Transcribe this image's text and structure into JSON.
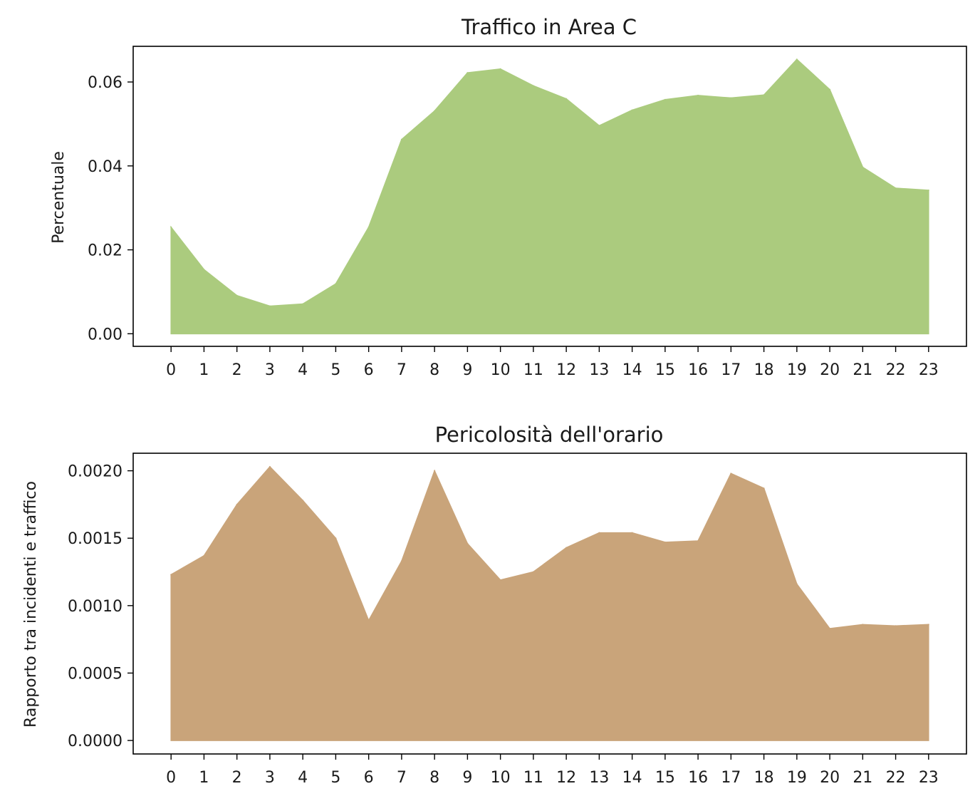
{
  "chart_data": [
    {
      "type": "area",
      "title": "Traffico in Area C",
      "xlabel": "",
      "ylabel": "Percentuale",
      "x": [
        0,
        1,
        2,
        3,
        4,
        5,
        6,
        7,
        8,
        9,
        10,
        11,
        12,
        13,
        14,
        15,
        16,
        17,
        18,
        19,
        20,
        21,
        22,
        23
      ],
      "xticks": [
        "0",
        "1",
        "2",
        "3",
        "4",
        "5",
        "6",
        "7",
        "8",
        "9",
        "10",
        "11",
        "12",
        "13",
        "14",
        "15",
        "16",
        "17",
        "18",
        "19",
        "20",
        "21",
        "22",
        "23"
      ],
      "values": [
        0.0254,
        0.0153,
        0.0091,
        0.0066,
        0.0071,
        0.0119,
        0.0254,
        0.0463,
        0.0531,
        0.0622,
        0.0631,
        0.0591,
        0.056,
        0.0496,
        0.0533,
        0.0558,
        0.0568,
        0.0562,
        0.0569,
        0.0654,
        0.0582,
        0.0397,
        0.0347,
        0.0342
      ],
      "yticks": [
        "0.00",
        "0.02",
        "0.04",
        "0.06"
      ],
      "ytick_values": [
        0,
        0.02,
        0.04,
        0.06
      ],
      "ylim": [
        -0.003,
        0.0685
      ],
      "xlim": [
        -1.15,
        24.15
      ],
      "color": "#abcb7e",
      "grid": false
    },
    {
      "type": "area",
      "title": "Pericolosità dell'orario",
      "xlabel": "",
      "ylabel": "Rapporto tra incidenti e traffico",
      "x": [
        0,
        1,
        2,
        3,
        4,
        5,
        6,
        7,
        8,
        9,
        10,
        11,
        12,
        13,
        14,
        15,
        16,
        17,
        18,
        19,
        20,
        21,
        22,
        23
      ],
      "xticks": [
        "0",
        "1",
        "2",
        "3",
        "4",
        "5",
        "6",
        "7",
        "8",
        "9",
        "10",
        "11",
        "12",
        "13",
        "14",
        "15",
        "16",
        "17",
        "18",
        "19",
        "20",
        "21",
        "22",
        "23"
      ],
      "values": [
        0.00123,
        0.00137,
        0.00175,
        0.00203,
        0.00178,
        0.0015,
        0.00089,
        0.00133,
        0.002,
        0.00146,
        0.00119,
        0.00125,
        0.00143,
        0.00154,
        0.00154,
        0.00147,
        0.00148,
        0.00198,
        0.00187,
        0.00116,
        0.00083,
        0.00086,
        0.00085,
        0.00086
      ],
      "yticks": [
        "0.0000",
        "0.0005",
        "0.0010",
        "0.0015",
        "0.0020"
      ],
      "ytick_values": [
        0,
        0.0005,
        0.001,
        0.0015,
        0.002
      ],
      "ylim": [
        -0.0001,
        0.00213
      ],
      "xlim": [
        -1.15,
        24.15
      ],
      "color": "#c9a47a",
      "grid": false
    }
  ]
}
